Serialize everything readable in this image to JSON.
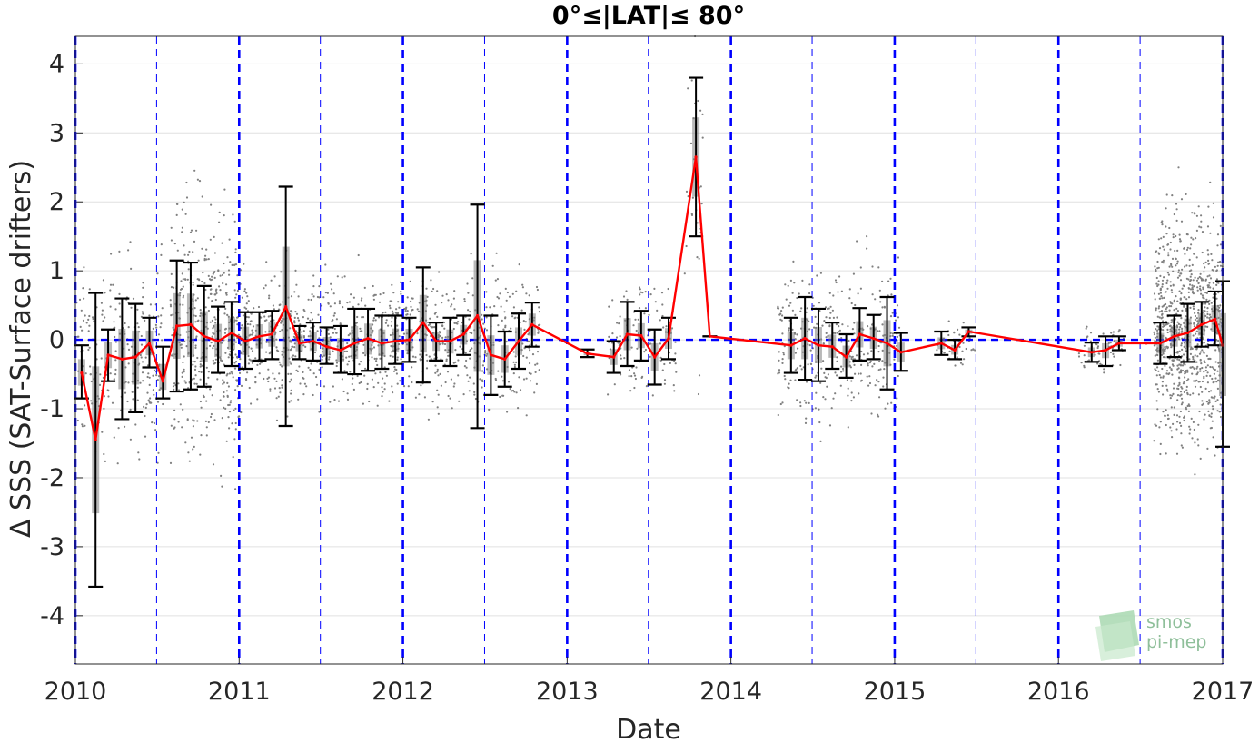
{
  "chart_data": {
    "type": "scatter",
    "title": "0°≤|LAT|≤ 80°",
    "xlabel": "Date",
    "ylabel": "Δ SSS (SAT-Surface drifters)",
    "xlim": [
      "2010-01-01",
      "2017-01-01"
    ],
    "ylim": [
      -4.7,
      4.4
    ],
    "x_ticks": [
      "2010",
      "2011",
      "2012",
      "2013",
      "2014",
      "2015",
      "2016",
      "2017"
    ],
    "y_ticks": [
      -4,
      -3,
      -2,
      -1,
      0,
      1,
      2,
      3,
      4
    ],
    "y_tick_labels": [
      "-4",
      "-3",
      "-2",
      "-1",
      "0",
      "1",
      "2",
      "3",
      "4"
    ],
    "grid": true,
    "reference_line": {
      "y": 0,
      "color": "#0000ff",
      "style": "dashed"
    },
    "year_lines": {
      "color": "#0000ff",
      "style": "dashed"
    },
    "scatter_color": "#808080",
    "mean_line_color": "#ff0000",
    "errorbar_color": "#000000",
    "box_fill": "#808080",
    "monthly_series": [
      {
        "x": "2010-01-15",
        "mean": -0.48,
        "low": -0.85,
        "high": -0.08
      },
      {
        "x": "2010-02-15",
        "mean": -1.45,
        "low": -3.58,
        "high": 0.68
      },
      {
        "x": "2010-03-15",
        "mean": -0.22,
        "low": -0.6,
        "high": 0.15
      },
      {
        "x": "2010-04-15",
        "mean": -0.28,
        "low": -1.15,
        "high": 0.6
      },
      {
        "x": "2010-05-15",
        "mean": -0.25,
        "low": -1.05,
        "high": 0.52
      },
      {
        "x": "2010-06-15",
        "mean": -0.05,
        "low": -0.4,
        "high": 0.32
      },
      {
        "x": "2010-07-15",
        "mean": -0.6,
        "low": -0.85,
        "high": -0.1
      },
      {
        "x": "2010-08-15",
        "mean": 0.2,
        "low": -0.75,
        "high": 1.15
      },
      {
        "x": "2010-09-15",
        "mean": 0.22,
        "low": -0.72,
        "high": 1.12
      },
      {
        "x": "2010-10-15",
        "mean": 0.05,
        "low": -0.68,
        "high": 0.78
      },
      {
        "x": "2010-11-15",
        "mean": -0.02,
        "low": -0.48,
        "high": 0.48
      },
      {
        "x": "2010-12-15",
        "mean": 0.1,
        "low": -0.38,
        "high": 0.55
      },
      {
        "x": "2011-01-15",
        "mean": -0.02,
        "low": -0.42,
        "high": 0.4
      },
      {
        "x": "2011-02-15",
        "mean": 0.05,
        "low": -0.3,
        "high": 0.4
      },
      {
        "x": "2011-03-15",
        "mean": 0.08,
        "low": -0.28,
        "high": 0.42
      },
      {
        "x": "2011-04-15",
        "mean": 0.48,
        "low": -1.25,
        "high": 2.22
      },
      {
        "x": "2011-05-15",
        "mean": -0.05,
        "low": -0.28,
        "high": 0.2
      },
      {
        "x": "2011-06-15",
        "mean": -0.02,
        "low": -0.3,
        "high": 0.25
      },
      {
        "x": "2011-07-15",
        "mean": -0.1,
        "low": -0.35,
        "high": 0.18
      },
      {
        "x": "2011-08-15",
        "mean": -0.15,
        "low": -0.48,
        "high": 0.2
      },
      {
        "x": "2011-09-15",
        "mean": -0.05,
        "low": -0.5,
        "high": 0.45
      },
      {
        "x": "2011-10-15",
        "mean": 0.02,
        "low": -0.45,
        "high": 0.45
      },
      {
        "x": "2011-11-15",
        "mean": -0.05,
        "low": -0.42,
        "high": 0.35
      },
      {
        "x": "2011-12-15",
        "mean": -0.02,
        "low": -0.35,
        "high": 0.35
      },
      {
        "x": "2012-01-15",
        "mean": 0.0,
        "low": -0.32,
        "high": 0.32
      },
      {
        "x": "2012-02-15",
        "mean": 0.25,
        "low": -0.62,
        "high": 1.05
      },
      {
        "x": "2012-03-15",
        "mean": -0.02,
        "low": -0.3,
        "high": 0.25
      },
      {
        "x": "2012-04-15",
        "mean": -0.02,
        "low": -0.38,
        "high": 0.32
      },
      {
        "x": "2012-05-15",
        "mean": 0.08,
        "low": -0.22,
        "high": 0.35
      },
      {
        "x": "2012-06-15",
        "mean": 0.35,
        "low": -1.28,
        "high": 1.96
      },
      {
        "x": "2012-07-15",
        "mean": -0.22,
        "low": -0.8,
        "high": 0.35
      },
      {
        "x": "2012-08-15",
        "mean": -0.28,
        "low": -0.68,
        "high": 0.12
      },
      {
        "x": "2012-09-15",
        "mean": -0.02,
        "low": -0.42,
        "high": 0.38
      },
      {
        "x": "2012-10-15",
        "mean": 0.22,
        "low": -0.1,
        "high": 0.54
      },
      {
        "x": "2013-02-15",
        "mean": -0.2,
        "low": -0.25,
        "high": -0.14
      },
      {
        "x": "2013-04-15",
        "mean": -0.25,
        "low": -0.48,
        "high": -0.02
      },
      {
        "x": "2013-05-15",
        "mean": 0.08,
        "low": -0.38,
        "high": 0.55
      },
      {
        "x": "2013-06-15",
        "mean": 0.06,
        "low": -0.3,
        "high": 0.42
      },
      {
        "x": "2013-07-15",
        "mean": -0.25,
        "low": -0.65,
        "high": 0.15
      },
      {
        "x": "2013-08-15",
        "mean": 0.02,
        "low": -0.28,
        "high": 0.32
      },
      {
        "x": "2013-10-15",
        "mean": 2.65,
        "low": 1.5,
        "high": 3.8
      },
      {
        "x": "2013-11-15",
        "mean": 0.05,
        "low": 0.05,
        "high": 0.05
      },
      {
        "x": "2014-05-15",
        "mean": -0.08,
        "low": -0.48,
        "high": 0.32
      },
      {
        "x": "2014-06-15",
        "mean": 0.02,
        "low": -0.58,
        "high": 0.62
      },
      {
        "x": "2014-07-15",
        "mean": -0.08,
        "low": -0.6,
        "high": 0.45
      },
      {
        "x": "2014-08-15",
        "mean": -0.1,
        "low": -0.42,
        "high": 0.25
      },
      {
        "x": "2014-09-15",
        "mean": -0.25,
        "low": -0.55,
        "high": 0.08
      },
      {
        "x": "2014-10-15",
        "mean": 0.08,
        "low": -0.3,
        "high": 0.46
      },
      {
        "x": "2014-11-15",
        "mean": 0.02,
        "low": -0.28,
        "high": 0.36
      },
      {
        "x": "2014-12-15",
        "mean": -0.05,
        "low": -0.72,
        "high": 0.62
      },
      {
        "x": "2015-01-15",
        "mean": -0.18,
        "low": -0.45,
        "high": 0.1
      },
      {
        "x": "2015-04-15",
        "mean": -0.05,
        "low": -0.22,
        "high": 0.12
      },
      {
        "x": "2015-05-15",
        "mean": -0.15,
        "low": -0.28,
        "high": 0.0
      },
      {
        "x": "2015-06-15",
        "mean": 0.12,
        "low": 0.05,
        "high": 0.18
      },
      {
        "x": "2016-03-15",
        "mean": -0.18,
        "low": -0.32,
        "high": -0.04
      },
      {
        "x": "2016-04-15",
        "mean": -0.15,
        "low": -0.38,
        "high": 0.05
      },
      {
        "x": "2016-05-15",
        "mean": -0.05,
        "low": -0.15,
        "high": 0.05
      },
      {
        "x": "2016-07-15",
        "mean": -0.05,
        "low": -0.05,
        "high": -0.05
      },
      {
        "x": "2016-08-15",
        "mean": -0.05,
        "low": -0.35,
        "high": 0.25
      },
      {
        "x": "2016-09-15",
        "mean": 0.05,
        "low": -0.25,
        "high": 0.35
      },
      {
        "x": "2016-10-15",
        "mean": 0.1,
        "low": -0.32,
        "high": 0.52
      },
      {
        "x": "2016-11-15",
        "mean": 0.22,
        "low": -0.1,
        "high": 0.55
      },
      {
        "x": "2016-12-15",
        "mean": 0.3,
        "low": -0.08,
        "high": 0.7
      },
      {
        "x": "2017-01-01",
        "mean": -0.08,
        "low": -1.55,
        "high": 0.85
      }
    ],
    "scatter_clouds": [
      {
        "start": "2010-01-01",
        "end": "2010-03-01",
        "center": -0.3,
        "spread": 0.6,
        "density": 60
      },
      {
        "start": "2010-03-01",
        "end": "2010-07-15",
        "center": -0.2,
        "spread": 0.7,
        "density": 180
      },
      {
        "start": "2010-08-01",
        "end": "2011-01-01",
        "center": 0.1,
        "spread": 0.9,
        "density": 450
      },
      {
        "start": "2011-01-01",
        "end": "2012-01-01",
        "center": 0.0,
        "spread": 0.45,
        "density": 600
      },
      {
        "start": "2012-01-01",
        "end": "2012-11-01",
        "center": 0.0,
        "spread": 0.45,
        "density": 420
      },
      {
        "start": "2013-04-01",
        "end": "2013-09-01",
        "center": 0.0,
        "spread": 0.45,
        "density": 120
      },
      {
        "start": "2013-09-20",
        "end": "2013-11-05",
        "center": 2.2,
        "spread": 1.2,
        "density": 30
      },
      {
        "start": "2014-04-15",
        "end": "2015-01-15",
        "center": -0.05,
        "spread": 0.55,
        "density": 350
      },
      {
        "start": "2015-04-01",
        "end": "2015-07-01",
        "center": -0.05,
        "spread": 0.15,
        "density": 40
      },
      {
        "start": "2016-02-15",
        "end": "2016-06-01",
        "center": -0.1,
        "spread": 0.2,
        "density": 60
      },
      {
        "start": "2016-08-01",
        "end": "2017-01-01",
        "center": 0.15,
        "spread": 0.8,
        "density": 900
      }
    ]
  },
  "logo": {
    "line1": "smos",
    "line2": "pi-mep"
  }
}
